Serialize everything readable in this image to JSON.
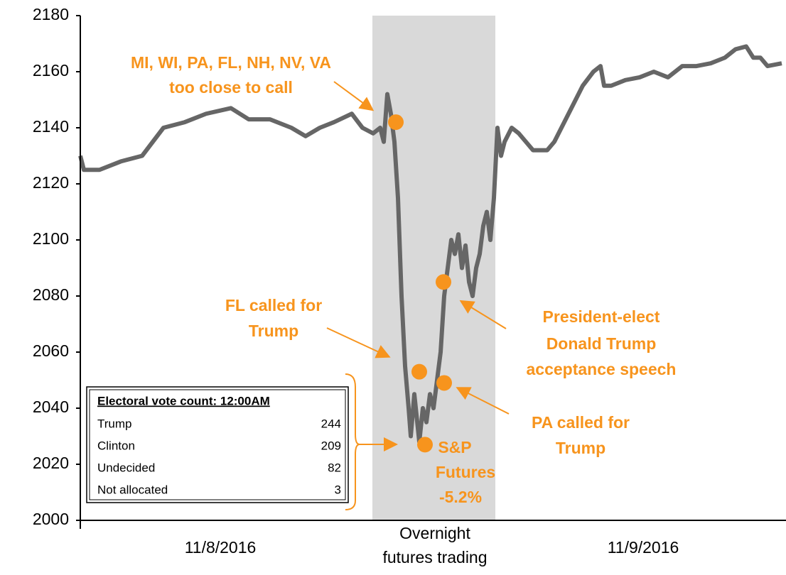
{
  "chart_data": {
    "type": "line",
    "ylim": [
      2000,
      2180
    ],
    "yticks": [
      2000,
      2020,
      2040,
      2060,
      2080,
      2100,
      2120,
      2140,
      2160,
      2180
    ],
    "xlim": [
      0,
      993
    ],
    "xticks": [
      {
        "value": 197,
        "label": "11/8/2016"
      },
      {
        "value": 499,
        "label": [
          "Overnight",
          "futures trading"
        ]
      },
      {
        "value": 792,
        "label": "11/9/2016"
      }
    ],
    "shaded_region": [
      411,
      584
    ],
    "series": [
      {
        "name": "S&P Futures",
        "color": "#666666",
        "x": [
          0,
          5,
          27,
          57,
          87,
          102,
          117,
          147,
          177,
          212,
          237,
          267,
          297,
          317,
          337,
          357,
          382,
          397,
          412,
          422,
          427,
          432,
          437,
          442,
          447,
          452,
          457,
          462,
          465,
          470,
          477,
          482,
          487,
          492,
          497,
          502,
          507,
          512,
          517,
          522,
          527,
          532,
          537,
          542,
          547,
          552,
          557,
          562,
          567,
          572,
          577,
          582,
          587,
          592,
          597,
          607,
          617,
          627,
          637,
          647,
          657,
          667,
          687,
          707,
          722,
          732,
          737,
          747,
          767,
          787,
          807,
          827,
          847,
          867,
          887,
          907,
          922,
          937,
          947,
          957,
          967,
          987
        ],
        "values": [
          2130,
          2125,
          2125,
          2128,
          2130,
          2135,
          2140,
          2142,
          2145,
          2147,
          2143,
          2143,
          2140,
          2137,
          2140,
          2142,
          2145,
          2140,
          2138,
          2140,
          2135,
          2152,
          2145,
          2135,
          2115,
          2080,
          2055,
          2040,
          2030,
          2045,
          2028,
          2040,
          2035,
          2045,
          2040,
          2050,
          2060,
          2080,
          2090,
          2100,
          2095,
          2102,
          2090,
          2098,
          2085,
          2080,
          2090,
          2095,
          2105,
          2110,
          2100,
          2115,
          2140,
          2130,
          2135,
          2140,
          2138,
          2135,
          2132,
          2132,
          2132,
          2135,
          2145,
          2155,
          2160,
          2162,
          2155,
          2155,
          2157,
          2158,
          2160,
          2158,
          2162,
          2162,
          2163,
          2165,
          2168,
          2169,
          2165,
          2165,
          2162,
          2163
        ]
      }
    ],
    "markers": {
      "color": "#f7941d",
      "x": [
        444,
        477,
        485,
        512,
        511
      ],
      "values": [
        2142,
        2053,
        2027,
        2049,
        2085
      ]
    },
    "annotations": [
      {
        "lines": [
          "MI, WI, PA, FL, NH, NV, VA",
          "too close to call"
        ]
      },
      {
        "lines": [
          "FL called for",
          "Trump"
        ]
      },
      {
        "lines": [
          "President-elect",
          "Donald Trump",
          "acceptance speech"
        ]
      },
      {
        "lines": [
          "PA called for",
          "Trump"
        ]
      },
      {
        "lines": [
          "S&P",
          "Futures",
          "-5.2%"
        ]
      }
    ],
    "inset_table": {
      "title": "Electoral vote count: 12:00AM",
      "rows": [
        [
          "Trump",
          "244"
        ],
        [
          "Clinton",
          "209"
        ],
        [
          "Undecided",
          "82"
        ],
        [
          "Not allocated",
          "3"
        ]
      ]
    }
  }
}
